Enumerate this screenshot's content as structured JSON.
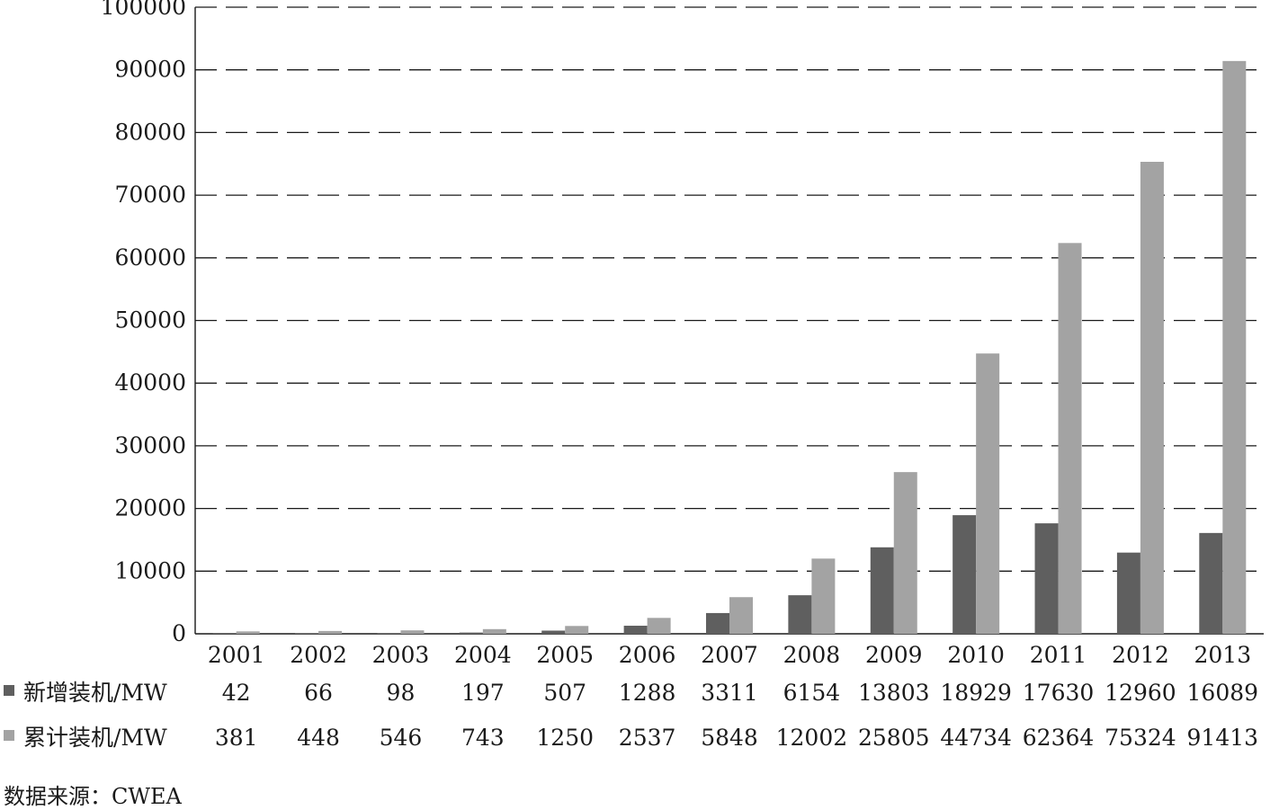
{
  "chart_data": {
    "type": "bar",
    "categories": [
      "2001",
      "2002",
      "2003",
      "2004",
      "2005",
      "2006",
      "2007",
      "2008",
      "2009",
      "2010",
      "2011",
      "2012",
      "2013"
    ],
    "series": [
      {
        "name": "新增装机/MW",
        "color": "#5f5f5f",
        "values": [
          42,
          66,
          98,
          197,
          507,
          1288,
          3311,
          6154,
          13803,
          18929,
          17630,
          12960,
          16089
        ]
      },
      {
        "name": "累计装机/MW",
        "color": "#a3a3a3",
        "values": [
          381,
          448,
          546,
          743,
          1250,
          2537,
          5848,
          12002,
          25805,
          44734,
          62364,
          75324,
          91413
        ]
      }
    ],
    "ylim": [
      0,
      100000
    ],
    "yticks": [
      0,
      10000,
      20000,
      30000,
      40000,
      50000,
      60000,
      70000,
      80000,
      90000,
      100000
    ],
    "grid": "horizontal-dashed",
    "legend": "data-table-below"
  },
  "source": "数据来源：CWEA"
}
